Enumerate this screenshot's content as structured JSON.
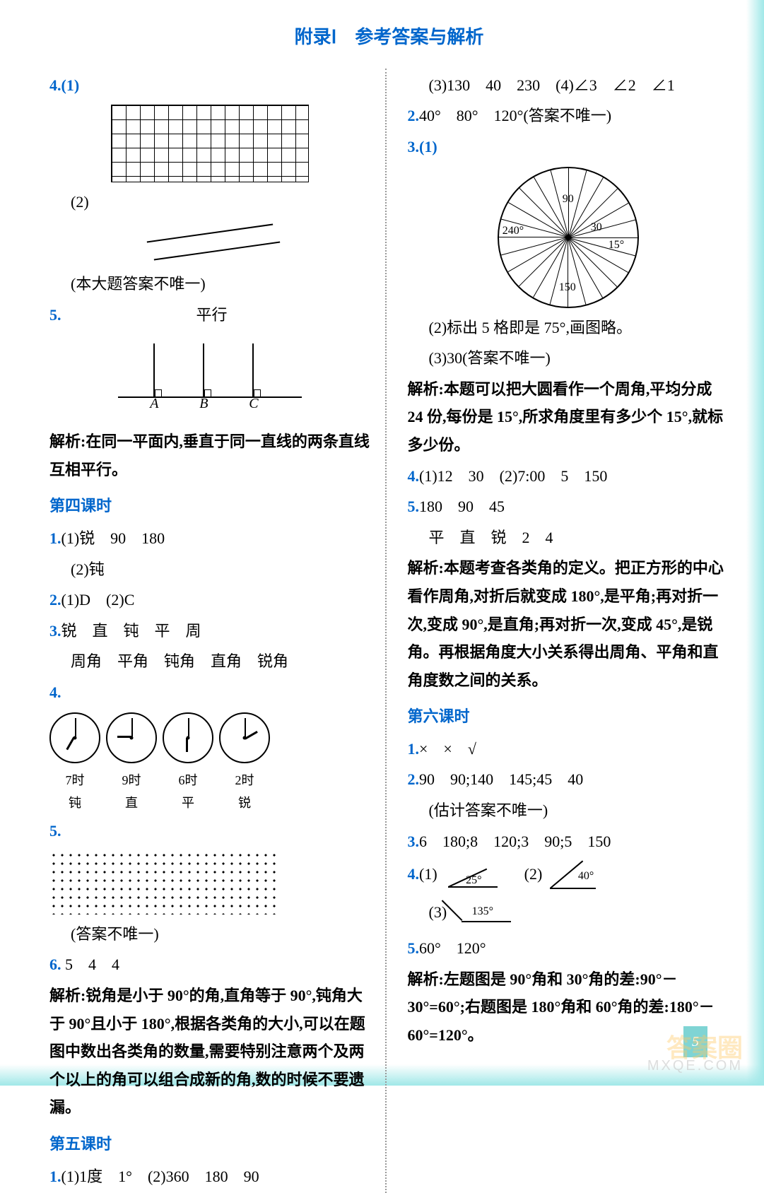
{
  "header": "附录Ⅰ　参考答案与解析",
  "left": {
    "q4_1": "4.(1)",
    "q4_2": "(2)",
    "q4_note": "(本大题答案不唯一)",
    "q5": "5.",
    "q5_ans": "平行",
    "perp_labels": [
      "A",
      "B",
      "C"
    ],
    "analysis5": "解析:在同一平面内,垂直于同一直线的两条直线互相平行。",
    "section4": "第四课时",
    "s4_1": "1.(1)锐　90　180",
    "s4_1b": "(2)钝",
    "s4_2": "2.(1)D　(2)C",
    "s4_3": "3.锐　直　钝　平　周",
    "s4_3b": "周角　平角　钝角　直角　锐角",
    "s4_4": "4.",
    "clock_times": [
      "7时",
      "9时",
      "6时",
      "2时"
    ],
    "clock_types": [
      "钝",
      "直",
      "平",
      "锐"
    ],
    "clock_hours": [
      7,
      9,
      6,
      2
    ],
    "s4_5": "5.",
    "s4_5note": "(答案不唯一)",
    "s4_6": "6. 5　4　4",
    "analysis6": "解析:锐角是小于 90°的角,直角等于 90°,钝角大于 90°且小于 180°,根据各类角的大小,可以在题图中数出各类角的数量,需要特别注意两个及两个以上的角可以组合成新的角,数的时候不要遗漏。",
    "section5": "第五课时",
    "s5_1": "1.(1)1度　1°　(2)360　180　90"
  },
  "right": {
    "r1_3": "(3)130　40　230　(4)∠3　∠2　∠1",
    "r2": "2.40°　80°　120°(答案不唯一)",
    "r3": "3.(1)",
    "dial_labels": {
      "240": "240°",
      "90": "90",
      "30": "30",
      "15": "15°",
      "150": "150"
    },
    "r3_2": "(2)标出 5 格即是 75°,画图略。",
    "r3_3": "(3)30(答案不唯一)",
    "analysis3": "解析:本题可以把大圆看作一个周角,平均分成 24 份,每份是 15°,所求角度里有多少个 15°,就标多少份。",
    "r4": "4.(1)12　30　(2)7:00　5　150",
    "r5": "5.180　90　45",
    "r5b": "平　直　锐　2　4",
    "analysis5": "解析:本题考查各类角的定义。把正方形的中心看作周角,对折后就变成 180°,是平角;再对折一次,变成 90°,是直角;再对折一次,变成 45°,是锐角。再根据角度大小关系得出周角、平角和直角度数之间的关系。",
    "section6": "第六课时",
    "s6_1": "1.×　×　√",
    "s6_2": "2.90　90;140　145;45　40",
    "s6_2b": "(估计答案不唯一)",
    "s6_3": "3.6　180;8　120;3　90;5　150",
    "s6_4": "4.(1)",
    "angle1": "25°",
    "s6_4b": "(2)",
    "angle2": "40°",
    "s6_4c": "(3)",
    "angle3": "135°",
    "s6_5": "5.60°　120°",
    "analysis_last": "解析:左题图是 90°角和 30°角的差:90°－30°=60°;右题图是 180°角和 60°角的差:180°－60°=120°。"
  },
  "page_num": "5",
  "watermark": "答案圈",
  "watermark_sub": "MXQE.COM"
}
